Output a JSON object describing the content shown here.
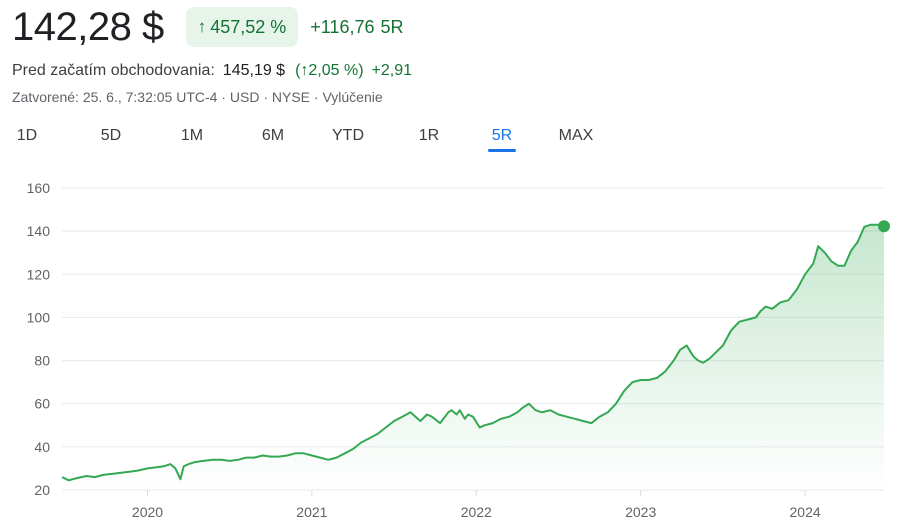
{
  "quote": {
    "price": "142,28 $",
    "change_pct": "457,52 %",
    "change_abs": "+116,76",
    "change_period": "5R",
    "arrow_icon": "up-arrow-icon"
  },
  "premarket": {
    "label": "Pred začatím obchodovania:",
    "price": "145,19 $",
    "change_pct": "(↑2,05 %)",
    "change_abs": "+2,91"
  },
  "meta": "Zatvorené: 25. 6., 7:32:05 UTC-4 · USD · NYSE · Vylúčenie",
  "tabs": [
    {
      "label": "1D",
      "active": false
    },
    {
      "label": "5D",
      "active": false
    },
    {
      "label": "1M",
      "active": false
    },
    {
      "label": "6M",
      "active": false
    },
    {
      "label": "YTD",
      "active": false
    },
    {
      "label": "1R",
      "active": false
    },
    {
      "label": "5R",
      "active": true
    },
    {
      "label": "MAX",
      "active": false
    }
  ],
  "colors": {
    "line": "#34a853",
    "positive_text": "#137333",
    "pill_bg": "#e6f4ea",
    "accent": "#1a73e8",
    "grid": "#e8eaed",
    "axis_text": "#5f6368"
  },
  "chart_data": {
    "type": "area",
    "title": "",
    "xlabel": "",
    "ylabel": "",
    "ylim": [
      20,
      160
    ],
    "yticks": [
      20,
      40,
      60,
      80,
      100,
      120,
      140,
      160
    ],
    "xlim": [
      2019.48,
      2024.48
    ],
    "xticks": [
      {
        "label": "2020",
        "value": 2020.0
      },
      {
        "label": "2021",
        "value": 2021.0
      },
      {
        "label": "2022",
        "value": 2022.0
      },
      {
        "label": "2023",
        "value": 2023.0
      },
      {
        "label": "2024",
        "value": 2024.0
      }
    ],
    "grid": true,
    "legend": "none",
    "series": [
      {
        "x": [
          2019.48,
          2019.52,
          2019.57,
          2019.63,
          2019.68,
          2019.73,
          2019.79,
          2019.84,
          2019.89,
          2019.94,
          2020.0,
          2020.05,
          2020.1,
          2020.14,
          2020.17,
          2020.2,
          2020.22,
          2020.25,
          2020.29,
          2020.34,
          2020.4,
          2020.45,
          2020.5,
          2020.55,
          2020.6,
          2020.65,
          2020.7,
          2020.75,
          2020.8,
          2020.85,
          2020.9,
          2020.95,
          2021.0,
          2021.05,
          2021.1,
          2021.15,
          2021.2,
          2021.25,
          2021.3,
          2021.35,
          2021.4,
          2021.45,
          2021.5,
          2021.55,
          2021.6,
          2021.63,
          2021.66,
          2021.7,
          2021.73,
          2021.78,
          2021.83,
          2021.85,
          2021.88,
          2021.9,
          2021.93,
          2021.95,
          2021.98,
          2022.02,
          2022.05,
          2022.1,
          2022.15,
          2022.2,
          2022.25,
          2022.28,
          2022.32,
          2022.36,
          2022.4,
          2022.45,
          2022.5,
          2022.55,
          2022.6,
          2022.65,
          2022.7,
          2022.75,
          2022.8,
          2022.85,
          2022.9,
          2022.95,
          2023.0,
          2023.05,
          2023.1,
          2023.15,
          2023.2,
          2023.24,
          2023.28,
          2023.32,
          2023.35,
          2023.38,
          2023.42,
          2023.46,
          2023.5,
          2023.55,
          2023.6,
          2023.65,
          2023.7,
          2023.73,
          2023.76,
          2023.8,
          2023.85,
          2023.9,
          2023.95,
          2024.0,
          2024.05,
          2024.08,
          2024.12,
          2024.16,
          2024.2,
          2024.24,
          2024.28,
          2024.32,
          2024.36,
          2024.4,
          2024.44,
          2024.48
        ],
        "y": [
          26,
          24.5,
          25.5,
          26.5,
          26,
          27,
          27.5,
          28,
          28.5,
          29,
          30,
          30.5,
          31,
          32,
          30,
          25,
          31,
          32,
          33,
          33.5,
          34,
          34,
          33.5,
          34,
          35,
          35,
          36,
          35.5,
          35.5,
          36,
          37,
          37,
          36,
          35,
          34,
          35,
          37,
          39,
          42,
          44,
          46,
          49,
          52,
          54,
          56,
          54,
          52,
          55,
          54,
          51,
          56,
          57,
          55,
          57,
          53,
          55,
          54,
          49,
          50,
          51,
          53,
          54,
          56,
          58,
          60,
          57,
          56,
          57,
          55,
          54,
          53,
          52,
          51,
          54,
          56,
          60,
          66,
          70,
          71,
          71,
          72,
          75,
          80,
          85,
          87,
          82,
          80,
          79,
          81,
          84,
          87,
          94,
          98,
          99,
          100,
          103,
          105,
          104,
          107,
          108,
          113,
          120,
          125,
          133,
          130,
          126,
          124,
          124,
          131,
          135,
          142,
          143,
          143,
          142.28
        ]
      }
    ]
  }
}
